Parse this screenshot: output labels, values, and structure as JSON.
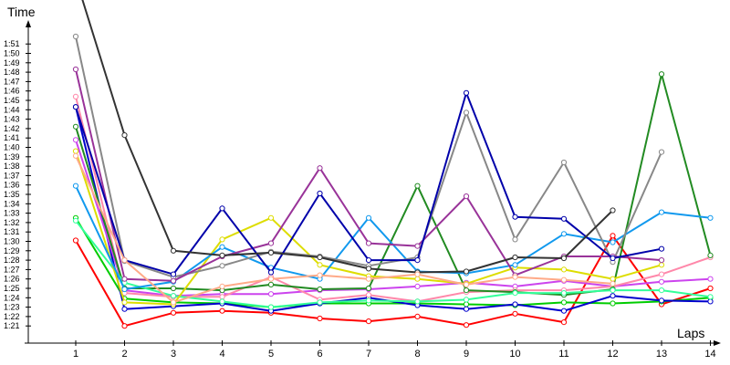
{
  "chart_data": {
    "type": "line",
    "xlabel": "Laps",
    "ylabel": "Time",
    "x": [
      1,
      2,
      3,
      4,
      5,
      6,
      7,
      8,
      9,
      10,
      11,
      12,
      13,
      14
    ],
    "y_ticks": [
      "1:21",
      "1:22",
      "1:23",
      "1:24",
      "1:25",
      "1:26",
      "1:27",
      "1:28",
      "1:29",
      "1:30",
      "1:31",
      "1:32",
      "1:33",
      "1:34",
      "1:35",
      "1:36",
      "1:37",
      "1:38",
      "1:39",
      "1:40",
      "1:41",
      "1:42",
      "1:43",
      "1:44",
      "1:45",
      "1:46",
      "1:47",
      "1:48",
      "1:49",
      "1:50",
      "1:51"
    ],
    "y_unit": "seconds",
    "ylim": [
      80,
      112
    ],
    "grid": false,
    "legend": "none",
    "series": [
      {
        "color": "#ff0000",
        "values": [
          90.1,
          81.0,
          82.4,
          82.6,
          82.4,
          81.8,
          81.5,
          82.0,
          81.1,
          82.3,
          81.4,
          90.6,
          83.3,
          85.0
        ]
      },
      {
        "color": "#00cc00",
        "values": [
          92.5,
          83.9,
          83.5,
          83.4,
          83.0,
          83.4,
          83.4,
          83.4,
          83.3,
          83.2,
          83.5,
          83.4,
          83.6,
          84.0
        ]
      },
      {
        "color": "#0000cc",
        "values": [
          104.3,
          82.8,
          83.1,
          83.4,
          82.6,
          83.4,
          84.0,
          83.2,
          82.8,
          83.3,
          82.6,
          84.2,
          83.7,
          83.6
        ]
      },
      {
        "color": "#cc44ee",
        "values": [
          100.8,
          84.8,
          84.2,
          84.4,
          84.4,
          84.8,
          84.9,
          85.2,
          85.6,
          85.2,
          85.8,
          85.2,
          85.7,
          86.0
        ]
      },
      {
        "color": "#ff88aa",
        "values": [
          105.4,
          84.5,
          84.1,
          84.1,
          86.2,
          83.8,
          84.3,
          83.6,
          84.6,
          84.8,
          84.8,
          85.2,
          86.5,
          88.3
        ]
      },
      {
        "color": "#228b22",
        "values": [
          102.2,
          85.0,
          85.0,
          84.8,
          85.4,
          84.9,
          85.0,
          95.9,
          84.8,
          84.6,
          84.3,
          84.9,
          107.8,
          88.5
        ]
      },
      {
        "color": "#33ff99",
        "values": [
          92.2,
          85.6,
          84.2,
          83.6,
          83.0,
          83.5,
          83.7,
          83.6,
          83.8,
          84.5,
          84.5,
          84.8,
          84.8,
          84.1
        ]
      },
      {
        "color": "#dddd00",
        "values": [
          99.6,
          83.5,
          83.3,
          90.2,
          92.5,
          87.5,
          86.3,
          86.0,
          85.5,
          87.2,
          87.0,
          86.0,
          87.5,
          null
        ]
      },
      {
        "color": "#1199ee",
        "values": [
          95.9,
          84.9,
          85.7,
          89.4,
          87.2,
          86.0,
          92.5,
          86.8,
          86.6,
          87.5,
          90.8,
          89.9,
          93.1,
          92.5
        ]
      },
      {
        "color": "#888888",
        "values": [
          111.8,
          87.9,
          86.2,
          87.4,
          88.9,
          88.4,
          87.4,
          88.3,
          103.7,
          90.2,
          98.4,
          87.8,
          99.5,
          null
        ]
      },
      {
        "color": "#993399",
        "values": [
          108.3,
          86.0,
          85.8,
          88.4,
          89.8,
          97.8,
          89.8,
          89.5,
          94.8,
          86.4,
          88.4,
          88.4,
          88.0,
          null
        ]
      },
      {
        "color": "#0000aa",
        "values": [
          104.3,
          88.0,
          86.5,
          93.5,
          86.7,
          95.1,
          88.0,
          88.0,
          105.8,
          92.6,
          92.4,
          88.2,
          89.2,
          null
        ]
      },
      {
        "color": "#333333",
        "values": [
          118.0,
          101.3,
          89.0,
          88.5,
          88.8,
          88.3,
          87.1,
          86.7,
          86.8,
          88.3,
          88.2,
          93.3,
          null,
          null
        ]
      },
      {
        "color": "#ffaa88",
        "values": [
          99.1,
          88.0,
          83.5,
          85.2,
          86.0,
          86.4,
          86.0,
          86.5,
          85.4,
          86.2,
          85.9,
          85.5,
          null,
          null
        ]
      }
    ]
  }
}
